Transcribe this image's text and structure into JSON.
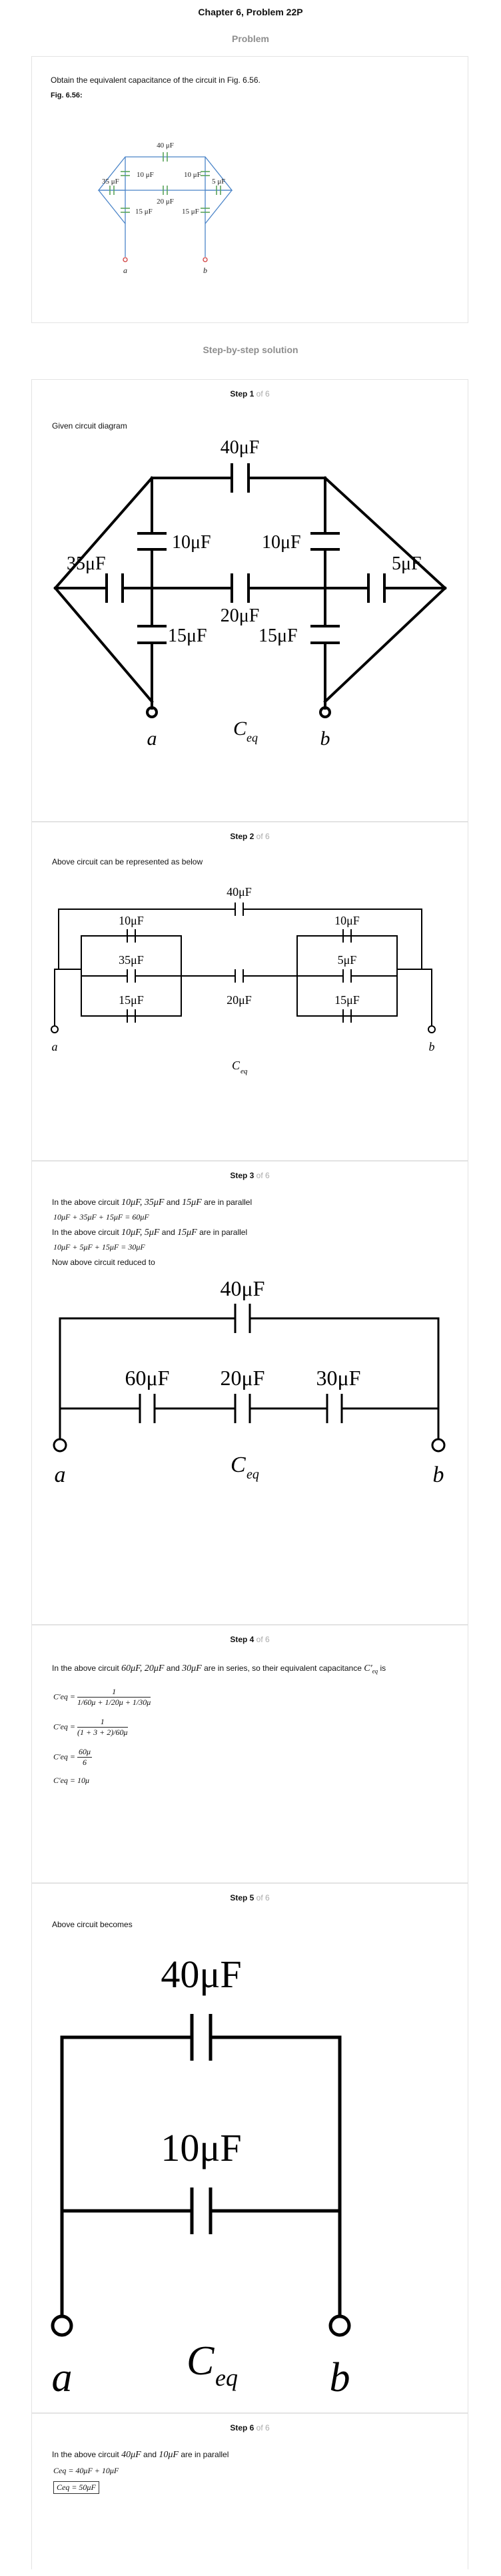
{
  "page": {
    "title": "Chapter 6, Problem 22P",
    "problem_heading": "Problem",
    "solution_heading": "Step-by-step solution"
  },
  "problem": {
    "statement": "Obtain the equivalent capacitance of the circuit in Fig. 6.56.",
    "figure_label": "Fig. 6.56:",
    "labels": {
      "c40": "40 μF",
      "c10a": "10 μF",
      "c10b": "10 μF",
      "c35": "35 μF",
      "c5": "5 μF",
      "c20": "20 μF",
      "c15a": "15 μF",
      "c15b": "15 μF",
      "node_a": "a",
      "node_b": "b"
    }
  },
  "step_of": "of 6",
  "steps": [
    {
      "label": "Step 1",
      "text": "Given circuit diagram",
      "circuit": {
        "c40": "40μF",
        "c10a": "10μF",
        "c10b": "10μF",
        "c35": "35μF",
        "c5": "5μF",
        "c20": "20μF",
        "c15a": "15μF",
        "c15b": "15μF",
        "a": "a",
        "b": "b",
        "ceq": "C",
        "ceq_sub": "eq"
      }
    },
    {
      "label": "Step 2",
      "text": "Above circuit can be represented as below",
      "circuit": {
        "c40": "40μF",
        "c10a": "10μF",
        "c10b": "10μF",
        "c35": "35μF",
        "c5": "5μF",
        "c15a": "15μF",
        "c15b": "15μF",
        "c20": "20μF",
        "a": "a",
        "b": "b",
        "ceq": "C",
        "ceq_sub": "eq"
      }
    },
    {
      "label": "Step 3",
      "line1_pre": "In the above circuit",
      "line1_math": "10μF, 35μF",
      "line1_and": "and",
      "line1_math2": "15μF",
      "line1_post": "are in parallel",
      "eq1": "10μF + 35μF + 15μF = 60μF",
      "line2_pre": "In the above circuit",
      "line2_math": "10μF, 5μF",
      "line2_and": "and",
      "line2_math2": "15μF",
      "line2_post": "are in parallel",
      "eq2": "10μF + 5μF + 15μF = 30μF",
      "line3": "Now above circuit reduced to",
      "circuit": {
        "c40": "40μF",
        "c60": "60μF",
        "c20": "20μF",
        "c30": "30μF",
        "a": "a",
        "b": "b",
        "ceq": "C",
        "ceq_sub": "eq"
      }
    },
    {
      "label": "Step 4",
      "line1_pre": "In the above circuit",
      "line1_math": "60μF, 20μF",
      "line1_and": "and",
      "line1_math2": "30μF",
      "line1_post": "are in series, so their equivalent capacitance",
      "line1_sym": "C'",
      "line1_sym_sub": "eq",
      "line1_tail": "is",
      "f1_lhs": "C'eq =",
      "f1_num": "1",
      "f1_den": "1/60μ + 1/20μ + 1/30μ",
      "f2_lhs": "C'eq =",
      "f2_num": "1",
      "f2_den": "(1 + 3 + 2)/60μ",
      "f3_lhs": "C'eq =",
      "f3_num": "60μ",
      "f3_den": "6",
      "f4": "C'eq = 10μ"
    },
    {
      "label": "Step 5",
      "text": "Above circuit becomes",
      "circuit": {
        "c40": "40μF",
        "c10": "10μF",
        "a": "a",
        "b": "b",
        "ceq": "C",
        "ceq_sub": "eq"
      }
    },
    {
      "label": "Step 6",
      "line1_pre": "In the above circuit",
      "line1_math": "40μF",
      "line1_and": "and",
      "line1_math2": "10μF",
      "line1_post": "are in parallel",
      "eq1": "Ceq = 40μF + 10μF",
      "eq2": "Ceq = 50μF"
    }
  ]
}
